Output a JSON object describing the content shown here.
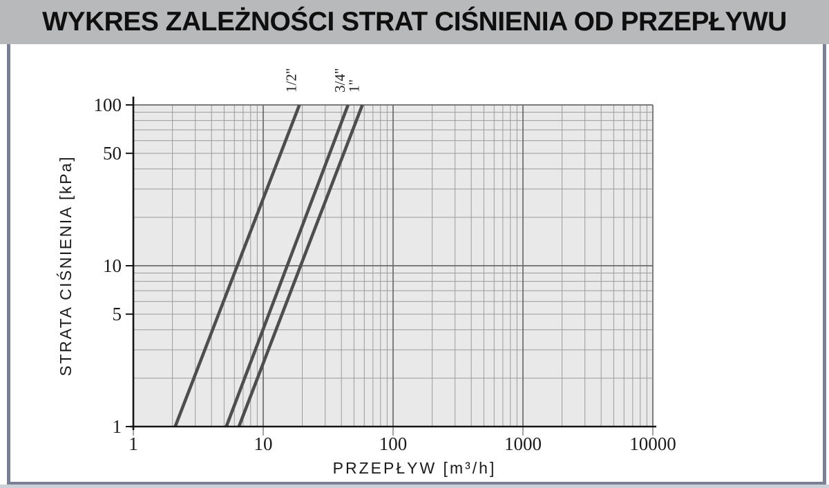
{
  "title": "WYKRES ZALEŻNOŚCI STRAT CIŚNIENIA OD PRZEPŁYWU",
  "chart_data": {
    "type": "line",
    "title": "WYKRES ZALEŻNOŚCI STRAT CIŚNIENIA OD PRZEPŁYWU",
    "xlabel": "PRZEPŁYW [m³/h]",
    "ylabel": "STRATA CIŚNIENIA [kPa]",
    "x_scale": "log",
    "y_scale": "log",
    "xlim": [
      1,
      10000
    ],
    "ylim": [
      1,
      100
    ],
    "x_ticks": [
      1,
      10,
      100,
      1000,
      10000
    ],
    "x_tick_labels": [
      "1",
      "10",
      "100",
      "1000",
      "10000"
    ],
    "y_ticks": [
      1,
      5,
      10,
      50,
      100
    ],
    "y_tick_labels": [
      "1",
      "5",
      "10",
      "50",
      "100"
    ],
    "grid": "log-log full minor grid",
    "legend_position": "labels rotated above line tops",
    "series": [
      {
        "name": "1/2\"",
        "points": [
          [
            2.1,
            1
          ],
          [
            19,
            100
          ]
        ]
      },
      {
        "name": "3/4\"",
        "points": [
          [
            5.2,
            1
          ],
          [
            45,
            100
          ]
        ]
      },
      {
        "name": "1\"",
        "points": [
          [
            6.5,
            1
          ],
          [
            58,
            100
          ]
        ]
      }
    ],
    "colors": {
      "plot_background": "#e9e9e9",
      "grid_minor": "#9a9a9a",
      "grid_major": "#6a6a6a",
      "axis": "#141414",
      "series_line": "#4e4e4e",
      "text": "#1a1a1a",
      "title_band": "#b7b9bb",
      "panel_border": "#7b8094"
    }
  }
}
